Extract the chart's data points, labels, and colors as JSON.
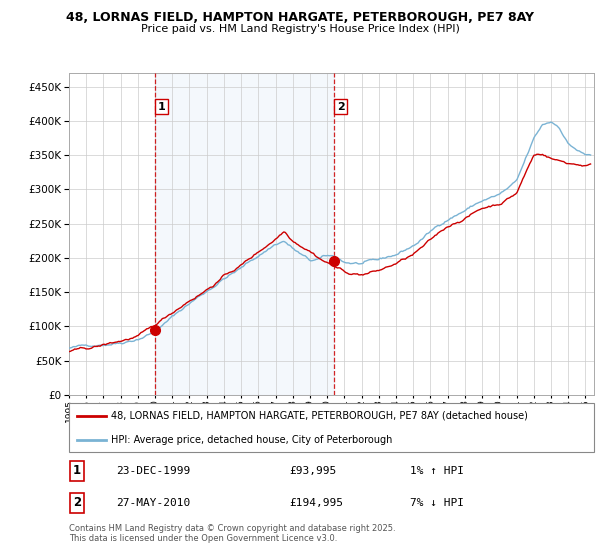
{
  "title1": "48, LORNAS FIELD, HAMPTON HARGATE, PETERBOROUGH, PE7 8AY",
  "title2": "Price paid vs. HM Land Registry's House Price Index (HPI)",
  "xlim_start": 1995.0,
  "xlim_end": 2025.5,
  "ylim": [
    0,
    470000
  ],
  "yticks": [
    0,
    50000,
    100000,
    150000,
    200000,
    250000,
    300000,
    350000,
    400000,
    450000
  ],
  "sale1_date": 1999.98,
  "sale1_value": 93995,
  "sale2_date": 2010.4,
  "sale2_value": 194995,
  "shade_start": 1999.98,
  "shade_end": 2010.4,
  "line_color_red": "#cc0000",
  "line_color_blue": "#7ab3d4",
  "plot_bg": "#ffffff",
  "grid_color": "#cccccc",
  "dashed_color": "#cc0000",
  "legend1": "48, LORNAS FIELD, HAMPTON HARGATE, PETERBOROUGH, PE7 8AY (detached house)",
  "legend2": "HPI: Average price, detached house, City of Peterborough",
  "annot1_label": "1",
  "annot1_date": "23-DEC-1999",
  "annot1_price": "£93,995",
  "annot1_hpi": "1% ↑ HPI",
  "annot2_label": "2",
  "annot2_date": "27-MAY-2010",
  "annot2_price": "£194,995",
  "annot2_hpi": "7% ↓ HPI",
  "footer": "Contains HM Land Registry data © Crown copyright and database right 2025.\nThis data is licensed under the Open Government Licence v3.0.",
  "hpi_anchors_x": [
    1995,
    1996,
    1997,
    1998,
    1999,
    2000,
    2001,
    2002,
    2003,
    2004,
    2005,
    2006,
    2007,
    2007.5,
    2008,
    2009,
    2009.5,
    2010,
    2010.5,
    2011,
    2012,
    2013,
    2014,
    2015,
    2016,
    2017,
    2018,
    2019,
    2020,
    2021,
    2021.5,
    2022,
    2022.5,
    2023,
    2023.5,
    2024,
    2025
  ],
  "hpi_anchors_y": [
    68000,
    70000,
    75000,
    80000,
    88000,
    100000,
    120000,
    140000,
    158000,
    178000,
    192000,
    210000,
    228000,
    233000,
    222000,
    202000,
    204000,
    207000,
    205000,
    198000,
    196000,
    197000,
    205000,
    218000,
    238000,
    258000,
    272000,
    286000,
    294000,
    310000,
    340000,
    370000,
    390000,
    395000,
    388000,
    365000,
    348000
  ],
  "prop_anchors_x": [
    1995,
    1996,
    1997,
    1998,
    1999,
    1999.98,
    2000,
    2001,
    2002,
    2003,
    2004,
    2005,
    2006,
    2007,
    2007.5,
    2008,
    2009,
    2009.5,
    2010,
    2010.4,
    2010.8,
    2011,
    2012,
    2013,
    2014,
    2015,
    2016,
    2017,
    2018,
    2019,
    2020,
    2021,
    2021.5,
    2022,
    2022.5,
    2023,
    2023.5,
    2024,
    2025
  ],
  "prop_anchors_y": [
    63000,
    65000,
    70000,
    76000,
    83000,
    93995,
    96000,
    115000,
    135000,
    152000,
    172000,
    188000,
    207000,
    228000,
    240000,
    228000,
    216000,
    207000,
    200000,
    194995,
    190000,
    185000,
    183000,
    188000,
    198000,
    210000,
    228000,
    248000,
    262000,
    276000,
    284000,
    300000,
    328000,
    355000,
    358000,
    352000,
    348000,
    345000,
    343000
  ]
}
